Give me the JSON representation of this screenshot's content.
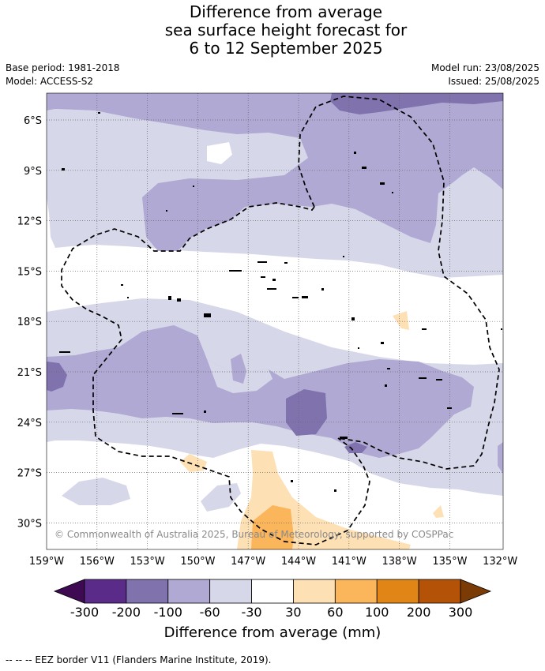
{
  "title": {
    "line1": "Difference from average",
    "line2": "sea surface height forecast for",
    "line3": "6 to 12 September 2025"
  },
  "meta": {
    "base_period": "Base period: 1981-2018",
    "model": "Model: ACCESS-S2",
    "model_run": "Model run: 23/08/2025",
    "issued": "Issued: 25/08/2025"
  },
  "map": {
    "lat_labels": [
      "6°S",
      "9°S",
      "12°S",
      "15°S",
      "18°S",
      "21°S",
      "24°S",
      "27°S",
      "30°S"
    ],
    "lon_labels": [
      "159°W",
      "156°W",
      "153°W",
      "150°W",
      "147°W",
      "144°W",
      "141°W",
      "138°W",
      "135°W",
      "132°W"
    ],
    "copyright": "© Commonwealth of Australia 2025, Bureau of Meteorology, supported by COSPPac",
    "colors": {
      "lt_purple": "#d7d7ea",
      "md_purple": "#afa9d3",
      "dk_purple": "#7f72ad",
      "dkr_purple": "#5b2b8a",
      "lt_orange": "#fee0b5",
      "md_orange": "#fbb55b"
    }
  },
  "colorbar": {
    "colors": [
      "#3e0a52",
      "#5b2b8a",
      "#7f72ad",
      "#afa9d3",
      "#d7d7ea",
      "#ffffff",
      "#fee0b5",
      "#fbb55b",
      "#e08516",
      "#b45308",
      "#7a3b06"
    ],
    "tick_labels": [
      "-300",
      "-200",
      "-100",
      "-60",
      "-30",
      "30",
      "60",
      "100",
      "200",
      "300"
    ],
    "title": "Difference from average (mm)"
  },
  "footer": "--  --  -- EEZ border V11 (Flanders Marine Institute, 2019)."
}
